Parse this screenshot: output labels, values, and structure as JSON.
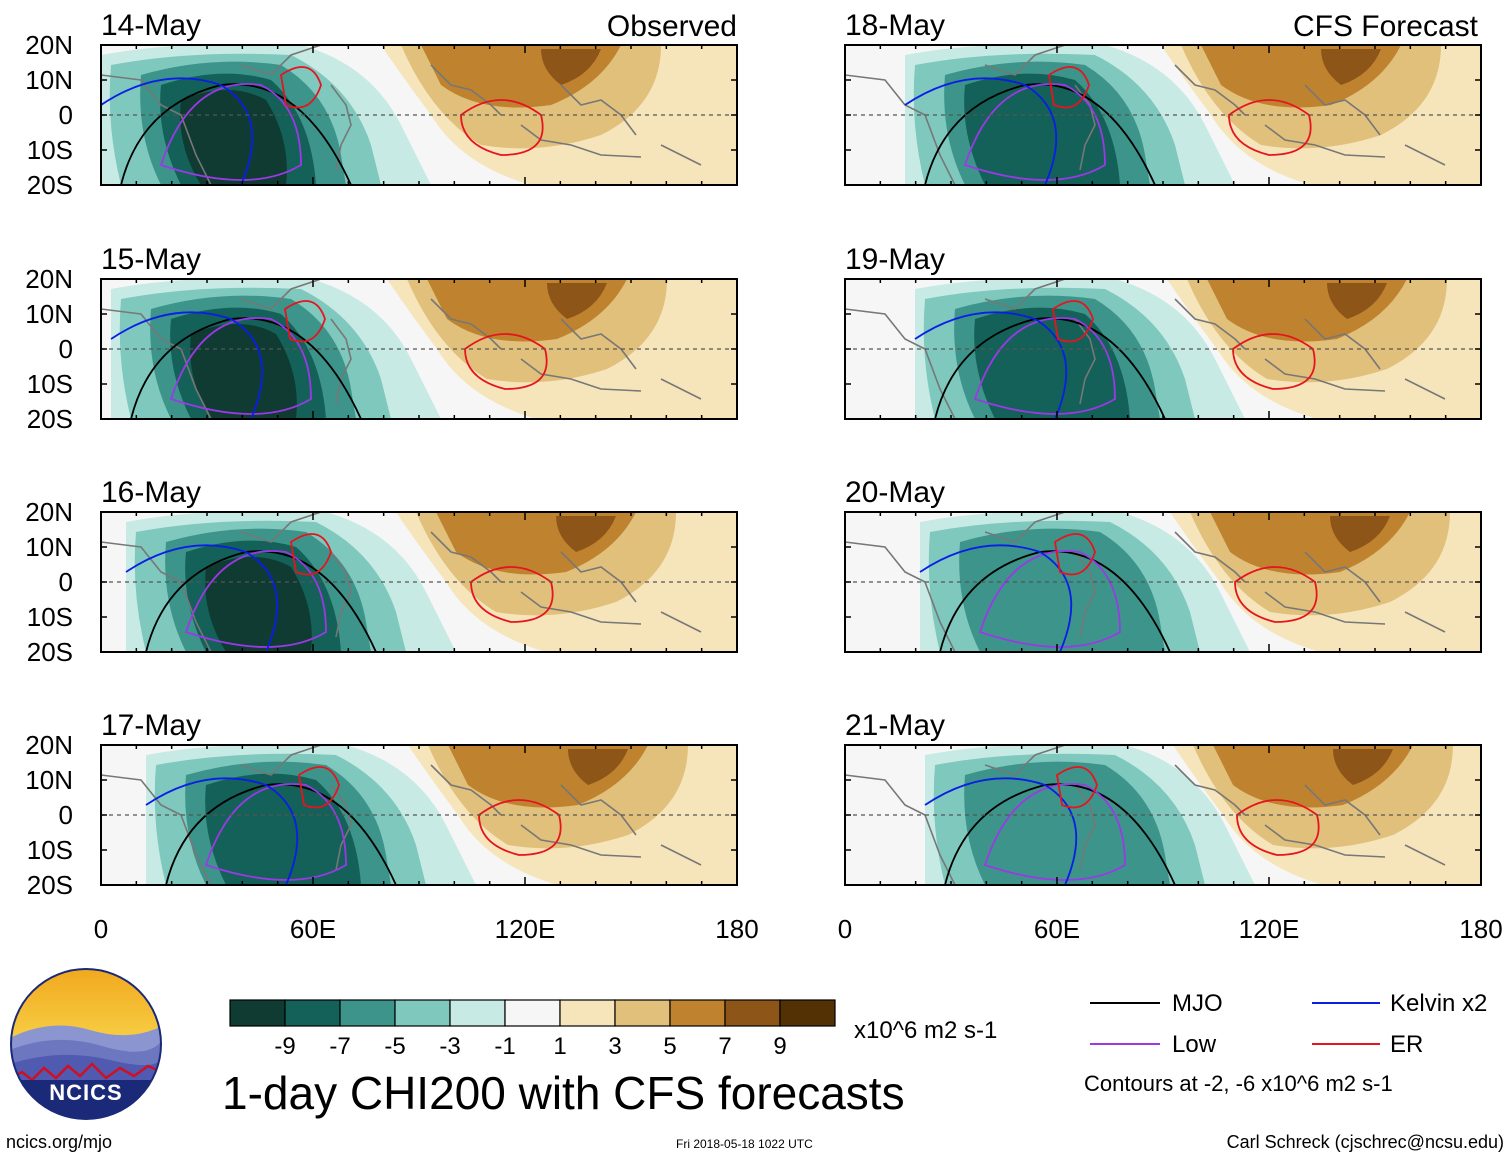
{
  "colors": {
    "neg9": "#0f3b33",
    "neg7": "#136158",
    "neg5": "#3d948a",
    "neg3": "#7fc8bd",
    "neg1": "#c7ebe4",
    "pos1": "#f6f6f6",
    "pos3": "#f6e5bb",
    "pos5": "#e1c07b",
    "pos7": "#bf8330",
    "pos9": "#8e5519",
    "pos11": "#543005",
    "mjo": "#000000",
    "low": "#9b39e6",
    "kelvin": "#0a1ee6",
    "er": "#e6141e",
    "equator": "#555555"
  },
  "panels": {
    "left_header": "Observed",
    "right_header": "CFS Forecast",
    "left": [
      {
        "date": "14-May"
      },
      {
        "date": "15-May"
      },
      {
        "date": "16-May"
      },
      {
        "date": "17-May"
      }
    ],
    "right": [
      {
        "date": "18-May"
      },
      {
        "date": "19-May"
      },
      {
        "date": "20-May"
      },
      {
        "date": "21-May"
      }
    ]
  },
  "axes": {
    "lat_labels": [
      "20N",
      "10N",
      "0",
      "10S",
      "20S"
    ],
    "lon_labels": [
      "0",
      "60E",
      "120E",
      "180"
    ]
  },
  "colorbar": {
    "tick_labels": [
      "-9",
      "-7",
      "-5",
      "-3",
      "-1",
      "1",
      "3",
      "5",
      "7",
      "9"
    ],
    "units": "x10^6 m2 s-1"
  },
  "title": "1-day CHI200 with CFS forecasts",
  "legend": {
    "mjo": "MJO",
    "kelvin": "Kelvin x2",
    "low": "Low",
    "er": "ER",
    "contours_note": "Contours at -2, -6 x10^6 m2 s-1"
  },
  "logo": {
    "text": "NCICS"
  },
  "footer": {
    "url": "ncics.org/mjo",
    "timestamp": "Fri 2018-05-18 1022 UTC",
    "credit": "Carl Schreck (cjschrec@ncsu.edu)"
  }
}
